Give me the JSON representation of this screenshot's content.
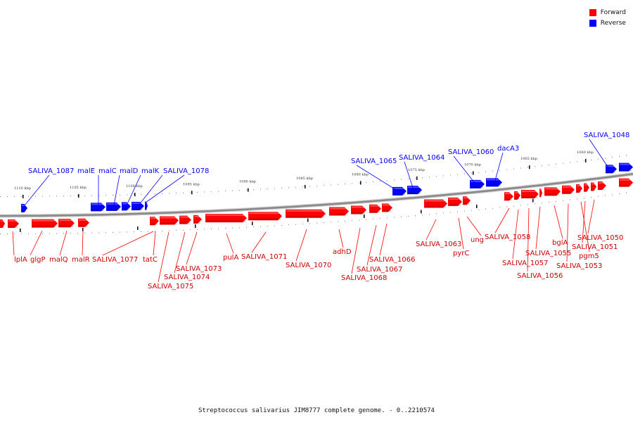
{
  "legend": [
    {
      "label": "Forward",
      "color": "#ff0000"
    },
    {
      "label": "Reverse",
      "color": "#0000ff"
    }
  ],
  "caption": "Streptococcus salivarius JIM8777 complete genome. - 0..2210574",
  "colors": {
    "forward": "#ff0000",
    "reverse": "#0000ff",
    "backbone": "#888888"
  },
  "ticks": [
    "1110 kbp",
    "1105 kbp",
    "1100 kbp",
    "1095 kbp",
    "1090 kbp",
    "1085 kbp",
    "1080 kbp",
    "1075 kbp",
    "1070 kbp",
    "1065 kbp",
    "1060 kbp"
  ],
  "genes_reverse": [
    "SALIVA_1087",
    "malE",
    "malC",
    "malD",
    "malK",
    "SALIVA_1078",
    "SALIVA_1065",
    "SALIVA_1064",
    "SALIVA_1060",
    "dacA3",
    "SALIVA_1048"
  ],
  "genes_forward": [
    "lplA",
    "glgP",
    "malQ",
    "malR",
    "SALIVA_1077",
    "tatC",
    "SALIVA_1075",
    "SALIVA_1074",
    "SALIVA_1073",
    "pulA",
    "SALIVA_1071",
    "SALIVA_1070",
    "adhD",
    "SALIVA_1068",
    "SALIVA_1067",
    "SALIVA_1066",
    "SALIVA_1063",
    "pyrC",
    "ung",
    "SALIVA_1058",
    "SALIVA_1057",
    "SALIVA_1056",
    "SALIVA_1055",
    "bglA",
    "SALIVA_1053",
    "pgm5",
    "SALIVA_1051",
    "SALIVA_1050"
  ]
}
